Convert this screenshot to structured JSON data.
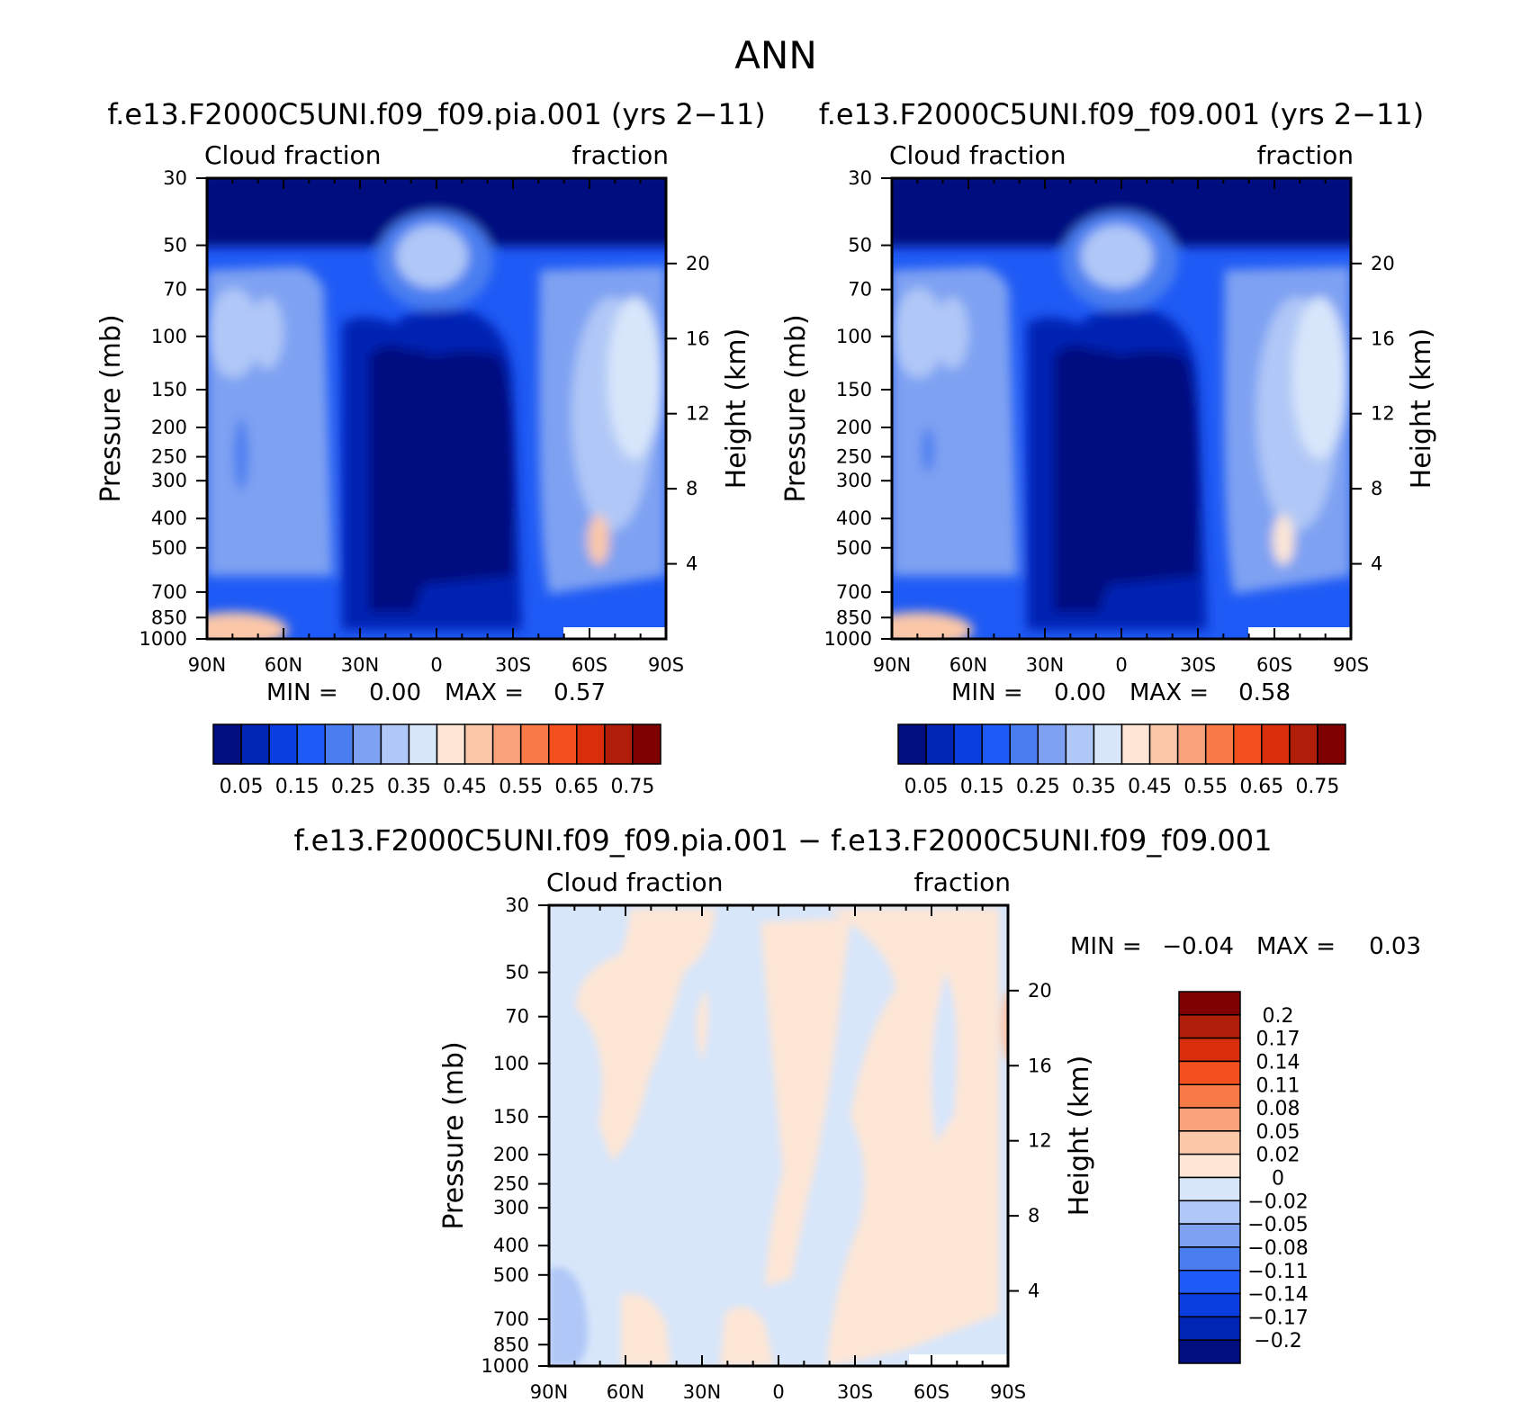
{
  "page_title": "ANN",
  "panels": [
    {
      "title": "f.e13.F2000C5UNI.f09_f09.pia.001 (yrs 2−11)",
      "left_label": "Cloud fraction",
      "right_label": "fraction",
      "ylabel": "Pressure (mb)",
      "ylabel_right": "Height (km)",
      "min_label": "MIN =",
      "min_value": "0.00",
      "max_label": "MAX =",
      "max_value": "0.57"
    },
    {
      "title": "f.e13.F2000C5UNI.f09_f09.001 (yrs 2−11)",
      "left_label": "Cloud fraction",
      "right_label": "fraction",
      "ylabel": "Pressure (mb)",
      "ylabel_right": "Height (km)",
      "min_label": "MIN =",
      "min_value": "0.00",
      "max_label": "MAX =",
      "max_value": "0.58"
    },
    {
      "title": "f.e13.F2000C5UNI.f09_f09.pia.001 − f.e13.F2000C5UNI.f09_f09.001",
      "left_label": "Cloud fraction",
      "right_label": "fraction",
      "ylabel": "Pressure (mb)",
      "ylabel_right": "Height (km)",
      "min_label": "MIN =",
      "min_value": "−0.04",
      "max_label": "MAX =",
      "max_value": "0.03"
    }
  ],
  "chart_data": [
    {
      "type": "heatmap",
      "title": "f.e13.F2000C5UNI.f09_f09.pia.001 (yrs 2−11)",
      "xlabel": "",
      "ylabel": "Pressure (mb)",
      "ylabel_right": "Height (km)",
      "x_ticks": [
        "90N",
        "60N",
        "30N",
        "0",
        "30S",
        "60S",
        "90S"
      ],
      "y_ticks": [
        "30",
        "50",
        "70",
        "100",
        "150",
        "200",
        "250",
        "300",
        "400",
        "500",
        "700",
        "850",
        "1000"
      ],
      "y_ticks_right": [
        "20",
        "16",
        "12",
        "8",
        "4"
      ],
      "min": 0.0,
      "max": 0.57,
      "colorbar_labels": [
        "0.05",
        "0.15",
        "0.25",
        "0.35",
        "0.45",
        "0.55",
        "0.65",
        "0.75"
      ]
    },
    {
      "type": "heatmap",
      "title": "f.e13.F2000C5UNI.f09_f09.001 (yrs 2−11)",
      "xlabel": "",
      "ylabel": "Pressure (mb)",
      "ylabel_right": "Height (km)",
      "x_ticks": [
        "90N",
        "60N",
        "30N",
        "0",
        "30S",
        "60S",
        "90S"
      ],
      "y_ticks": [
        "30",
        "50",
        "70",
        "100",
        "150",
        "200",
        "250",
        "300",
        "400",
        "500",
        "700",
        "850",
        "1000"
      ],
      "y_ticks_right": [
        "20",
        "16",
        "12",
        "8",
        "4"
      ],
      "min": 0.0,
      "max": 0.58,
      "colorbar_labels": [
        "0.05",
        "0.15",
        "0.25",
        "0.35",
        "0.45",
        "0.55",
        "0.65",
        "0.75"
      ]
    },
    {
      "type": "heatmap",
      "title": "f.e13.F2000C5UNI.f09_f09.pia.001 − f.e13.F2000C5UNI.f09_f09.001",
      "xlabel": "",
      "ylabel": "Pressure (mb)",
      "ylabel_right": "Height (km)",
      "x_ticks": [
        "90N",
        "60N",
        "30N",
        "0",
        "30S",
        "60S",
        "90S"
      ],
      "y_ticks": [
        "30",
        "50",
        "70",
        "100",
        "150",
        "200",
        "250",
        "300",
        "400",
        "500",
        "700",
        "850",
        "1000"
      ],
      "y_ticks_right": [
        "20",
        "16",
        "12",
        "8",
        "4"
      ],
      "min": -0.04,
      "max": 0.03,
      "colorbar_labels": [
        "0.2",
        "0.17",
        "0.14",
        "0.11",
        "0.08",
        "0.05",
        "0.02",
        "0",
        "−0.02",
        "−0.05",
        "−0.08",
        "−0.11",
        "−0.14",
        "−0.17",
        "−0.2"
      ]
    }
  ],
  "colors": {
    "seq": [
      "#000e7f",
      "#0024b3",
      "#0a3ee0",
      "#1e5af5",
      "#4a7ef0",
      "#7ea1f2",
      "#b0c8f7",
      "#d8e6fa",
      "#fde6d6",
      "#fbc7a9",
      "#f9a37a",
      "#f77a47",
      "#f44f1f",
      "#d92e0b",
      "#b01d08",
      "#7f0000"
    ],
    "diff": [
      "#7f0000",
      "#b01d08",
      "#d92e0b",
      "#f44f1f",
      "#f77a47",
      "#f9a37a",
      "#fbc7a9",
      "#fde6d6",
      "#d8e6fa",
      "#b0c8f7",
      "#7ea1f2",
      "#4a7ef0",
      "#1e5af5",
      "#0a3ee0",
      "#0024b3",
      "#000e7f"
    ]
  }
}
